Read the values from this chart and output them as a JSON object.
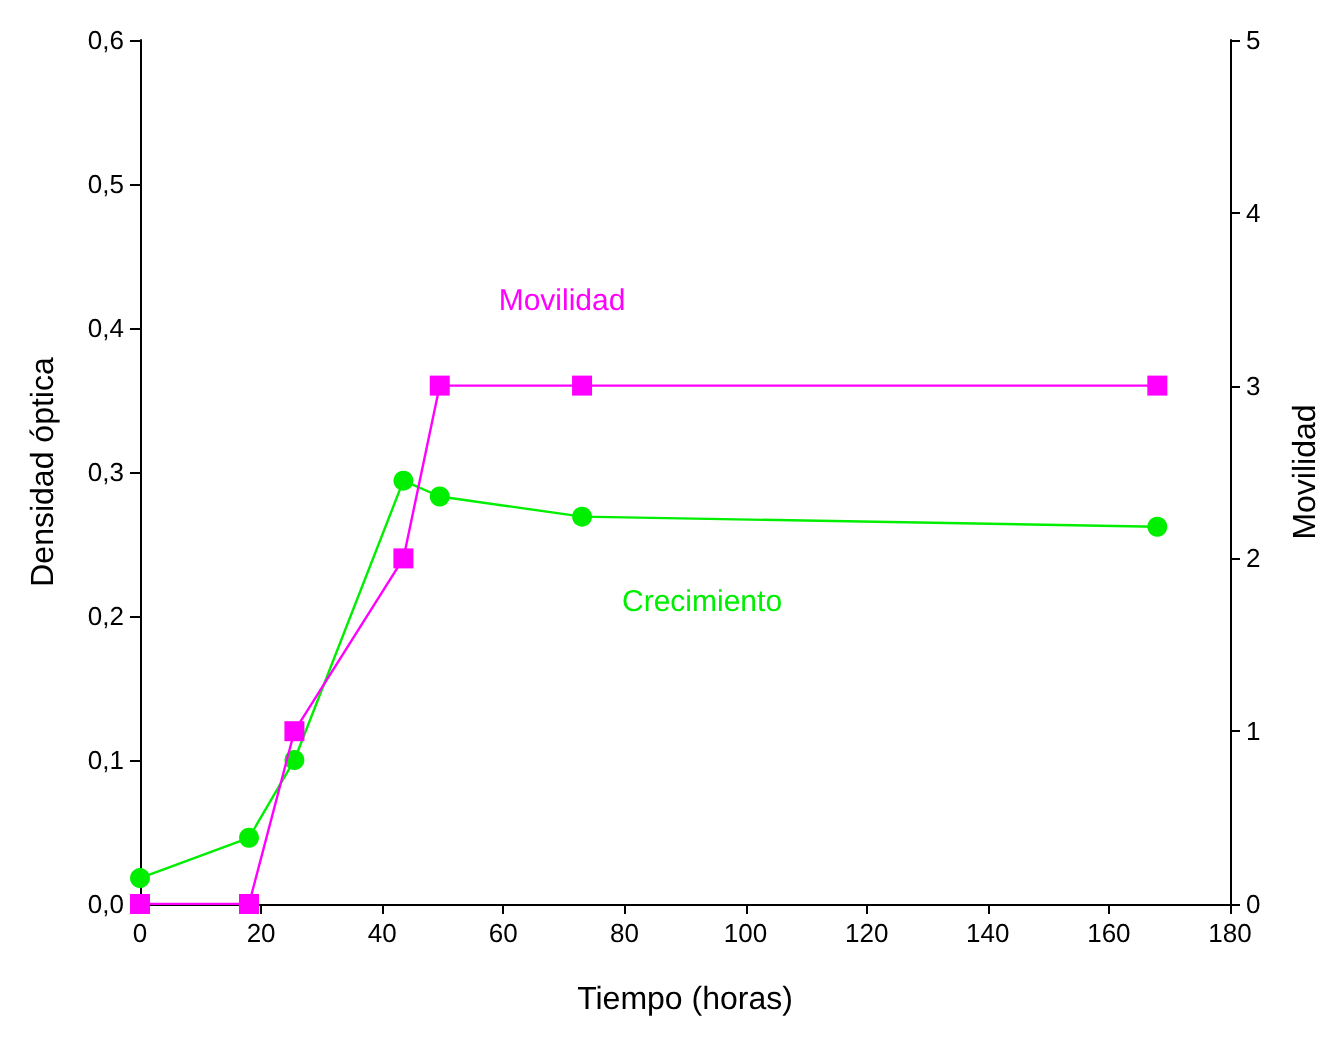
{
  "chart_data": {
    "type": "line",
    "xlabel": "Tiempo (horas)",
    "ylabel": "Densidad óptica",
    "y2label": "Movilidad",
    "series": [
      {
        "name": "Crecimiento",
        "color": "#00ee00",
        "marker": "circle",
        "x": [
          0,
          18,
          25.5,
          43.5,
          49.5,
          73,
          168
        ],
        "values": [
          0.018,
          0.046,
          0.1,
          0.294,
          0.283,
          0.269,
          0.262
        ]
      },
      {
        "name": "Movilidad",
        "color": "#ff00ff",
        "marker": "square",
        "axis": "y2",
        "x": [
          0,
          18,
          25.5,
          43.5,
          49.5,
          73,
          168
        ],
        "values": [
          0,
          0,
          1,
          2,
          3,
          3,
          3
        ]
      }
    ],
    "xlim": [
      0,
      180
    ],
    "xticks": [
      0,
      20,
      40,
      60,
      80,
      100,
      120,
      140,
      160,
      180
    ],
    "ylim": [
      0,
      0.6
    ],
    "yticks": [
      {
        "value": 0,
        "label": "0,0"
      },
      {
        "value": 0.1,
        "label": "0,1"
      },
      {
        "value": 0.2,
        "label": "0,2"
      },
      {
        "value": 0.3,
        "label": "0,3"
      },
      {
        "value": 0.4,
        "label": "0,4"
      },
      {
        "value": 0.5,
        "label": "0,5"
      },
      {
        "value": 0.6,
        "label": "0,6"
      }
    ],
    "y2lim": [
      0,
      5
    ],
    "y2ticks": [
      0,
      1,
      2,
      3,
      4,
      5
    ],
    "grid": false,
    "legend": false,
    "line_style": "solid"
  }
}
